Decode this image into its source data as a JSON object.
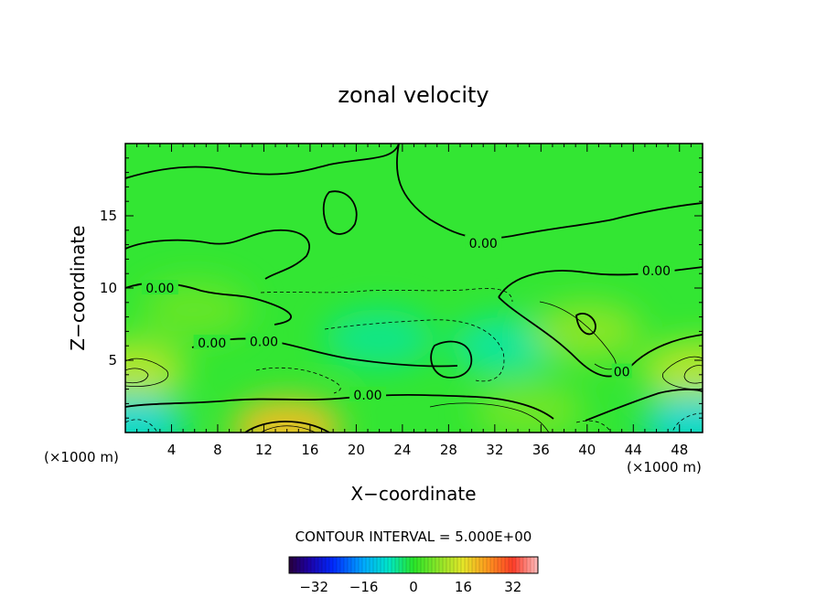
{
  "chart_data": {
    "type": "contour",
    "title": "zonal velocity",
    "xlabel": "X−coordinate",
    "ylabel": "Z−coordinate",
    "x_unit_left": "(×1000 m)",
    "x_unit_right": "(×1000 m)",
    "xlim": [
      0,
      50
    ],
    "ylim": [
      0,
      20
    ],
    "x_ticks": [
      4,
      8,
      12,
      16,
      20,
      24,
      28,
      32,
      36,
      40,
      44,
      48
    ],
    "x_tick_labels": [
      "4",
      "8",
      "12",
      "16",
      "20",
      "24",
      "28",
      "32",
      "36",
      "40",
      "44",
      "48"
    ],
    "y_ticks": [
      5,
      10,
      15
    ],
    "y_tick_labels": [
      "5",
      "10",
      "15"
    ],
    "contour_interval_text": "CONTOUR INTERVAL = 5.000E+00",
    "contour_interval": 5.0,
    "zero_contour_labels": [
      {
        "x": 31,
        "y": 13.1,
        "text": "0.00"
      },
      {
        "x": 46,
        "y": 11.2,
        "text": "0.00"
      },
      {
        "x": 3,
        "y": 10.0,
        "text": "0.00"
      },
      {
        "x": 7.5,
        "y": 6.2,
        "text": "0.00"
      },
      {
        "x": 12,
        "y": 6.3,
        "text": "0.00"
      },
      {
        "x": 21,
        "y": 2.6,
        "text": "0.00"
      },
      {
        "x": 43,
        "y": 4.2,
        "text": "00"
      }
    ],
    "field_features": [
      {
        "x": 0.5,
        "z": 4.3,
        "value": 12
      },
      {
        "x": 49.5,
        "z": 4.3,
        "value": 12
      },
      {
        "x": 14,
        "z": 0.3,
        "value": 20
      },
      {
        "x": 0.5,
        "z": 0.6,
        "value": -10
      },
      {
        "x": 49.5,
        "z": 0.6,
        "value": -10
      },
      {
        "x": 33,
        "z": 6.0,
        "value": -6
      },
      {
        "x": 22,
        "z": 6.5,
        "value": -5
      },
      {
        "x": 40,
        "z": 7.0,
        "value": 8
      },
      {
        "x": 6,
        "z": 8.5,
        "value": 5
      },
      {
        "x": 35,
        "z": 1.5,
        "value": 6
      }
    ],
    "colorbar": {
      "min": -40,
      "max": 40,
      "ticks": [
        -32,
        -16,
        0,
        16,
        32
      ],
      "tick_labels": [
        "−32",
        "−16",
        "0",
        "16",
        "32"
      ]
    }
  }
}
